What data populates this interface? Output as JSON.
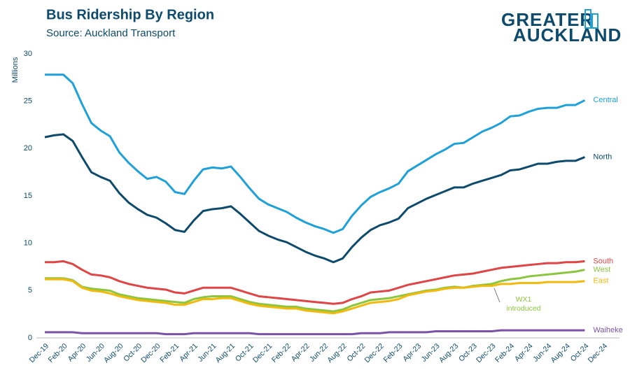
{
  "chart_data": {
    "type": "line",
    "title": "Bus Ridership By Region",
    "subtitle": "Source: Auckland Transport",
    "logo": [
      "GREATER",
      "AUCKLAND"
    ],
    "y_label": "Millions",
    "annotation": [
      "WX1",
      "introduced"
    ],
    "categories": [
      "Dec-19",
      null,
      "Feb-20",
      null,
      "Apr-20",
      null,
      "Jun-20",
      null,
      "Aug-20",
      null,
      "Oct-20",
      null,
      "Dec-20",
      null,
      "Feb-21",
      null,
      "Apr-21",
      null,
      "Jun-21",
      null,
      "Aug-21",
      null,
      "Oct-21",
      null,
      "Dec-21",
      null,
      "Feb-22",
      null,
      "Apr-22",
      null,
      "Jun-22",
      null,
      "Aug-22",
      null,
      "Oct-22",
      null,
      "Dec-22",
      null,
      "Feb-23",
      null,
      "Apr-23",
      null,
      "Jun-23",
      null,
      "Aug-23",
      null,
      "Oct-23",
      null,
      "Dec-23",
      null,
      "Feb-24",
      null,
      "Apr-24",
      null,
      "Jun-24",
      null,
      "Aug-24",
      null,
      "Oct-24",
      null,
      "Dec-24"
    ],
    "series": [
      {
        "name": "Central",
        "color": "#1ea0d8",
        "values": [
          27.8,
          27.8,
          27.8,
          26.9,
          24.7,
          22.7,
          21.9,
          21.3,
          19.6,
          18.5,
          17.6,
          16.8,
          17.0,
          16.5,
          15.4,
          15.2,
          16.6,
          17.8,
          18.0,
          17.9,
          18.1,
          17.0,
          15.8,
          14.7,
          14.1,
          13.7,
          13.3,
          12.7,
          12.2,
          11.8,
          11.5,
          11.1,
          11.5,
          12.9,
          14.0,
          14.9,
          15.4,
          15.8,
          16.3,
          17.6,
          18.2,
          18.8,
          19.4,
          19.9,
          20.5,
          20.6,
          21.2,
          21.8,
          22.2,
          22.7,
          23.4,
          23.5,
          23.9,
          24.2,
          24.3,
          24.3,
          24.6,
          24.6,
          25.1,
          null,
          null
        ]
      },
      {
        "name": "North",
        "color": "#0d4a6b",
        "values": [
          21.2,
          21.4,
          21.5,
          20.8,
          19.1,
          17.5,
          17.0,
          16.6,
          15.3,
          14.3,
          13.6,
          13.0,
          12.7,
          12.1,
          11.4,
          11.2,
          12.4,
          13.4,
          13.6,
          13.7,
          13.9,
          13.1,
          12.2,
          11.3,
          10.8,
          10.4,
          10.1,
          9.6,
          9.1,
          8.7,
          8.4,
          8.0,
          8.4,
          9.6,
          10.6,
          11.4,
          11.9,
          12.2,
          12.6,
          13.7,
          14.2,
          14.7,
          15.1,
          15.5,
          15.9,
          15.9,
          16.3,
          16.6,
          16.9,
          17.2,
          17.7,
          17.8,
          18.1,
          18.4,
          18.4,
          18.6,
          18.7,
          18.7,
          19.1,
          null,
          null
        ]
      },
      {
        "name": "South",
        "color": "#e04545",
        "values": [
          8.0,
          8.0,
          8.1,
          7.8,
          7.2,
          6.7,
          6.6,
          6.4,
          6.0,
          5.7,
          5.5,
          5.3,
          5.2,
          5.1,
          4.8,
          4.7,
          5.0,
          5.3,
          5.3,
          5.3,
          5.3,
          5.0,
          4.7,
          4.4,
          4.3,
          4.2,
          4.1,
          4.0,
          3.9,
          3.8,
          3.7,
          3.6,
          3.7,
          4.1,
          4.4,
          4.8,
          4.9,
          5.0,
          5.3,
          5.6,
          5.8,
          6.0,
          6.2,
          6.4,
          6.6,
          6.7,
          6.8,
          7.0,
          7.2,
          7.4,
          7.5,
          7.6,
          7.7,
          7.8,
          7.9,
          7.9,
          8.0,
          8.0,
          8.1,
          null,
          null
        ]
      },
      {
        "name": "West",
        "color": "#8cc63f",
        "values": [
          6.3,
          6.3,
          6.3,
          6.1,
          5.4,
          5.2,
          5.1,
          5.0,
          4.6,
          4.4,
          4.2,
          4.1,
          4.0,
          3.9,
          3.8,
          3.7,
          4.1,
          4.3,
          4.4,
          4.4,
          4.4,
          4.1,
          3.8,
          3.6,
          3.5,
          3.4,
          3.3,
          3.3,
          3.1,
          3.0,
          2.9,
          2.8,
          3.0,
          3.4,
          3.7,
          4.0,
          4.1,
          4.2,
          4.4,
          4.6,
          4.8,
          5.0,
          5.1,
          5.3,
          5.4,
          5.3,
          5.5,
          5.6,
          5.7,
          6.0,
          6.2,
          6.3,
          6.5,
          6.6,
          6.7,
          6.8,
          6.9,
          7.0,
          7.2,
          null,
          null
        ]
      },
      {
        "name": "East",
        "color": "#f2b90f",
        "values": [
          6.2,
          6.2,
          6.2,
          6.0,
          5.3,
          5.0,
          4.9,
          4.7,
          4.4,
          4.2,
          4.0,
          3.9,
          3.8,
          3.7,
          3.5,
          3.5,
          3.8,
          4.1,
          4.1,
          4.2,
          4.2,
          3.9,
          3.6,
          3.4,
          3.3,
          3.2,
          3.1,
          3.1,
          2.9,
          2.8,
          2.7,
          2.6,
          2.8,
          3.1,
          3.4,
          3.7,
          3.8,
          3.9,
          4.1,
          4.5,
          4.7,
          4.9,
          5.0,
          5.2,
          5.3,
          5.3,
          5.4,
          5.5,
          5.5,
          5.7,
          5.7,
          5.8,
          5.8,
          5.8,
          5.9,
          5.9,
          5.9,
          5.9,
          6.0,
          null,
          null
        ]
      },
      {
        "name": "Waiheke",
        "color": "#7b52a8",
        "values": [
          0.6,
          0.6,
          0.6,
          0.6,
          0.5,
          0.5,
          0.5,
          0.5,
          0.5,
          0.5,
          0.5,
          0.5,
          0.5,
          0.4,
          0.4,
          0.4,
          0.5,
          0.5,
          0.5,
          0.5,
          0.5,
          0.5,
          0.5,
          0.4,
          0.4,
          0.4,
          0.4,
          0.4,
          0.4,
          0.4,
          0.4,
          0.4,
          0.4,
          0.4,
          0.5,
          0.5,
          0.5,
          0.6,
          0.6,
          0.6,
          0.6,
          0.6,
          0.7,
          0.7,
          0.7,
          0.7,
          0.7,
          0.7,
          0.7,
          0.8,
          0.8,
          0.8,
          0.8,
          0.8,
          0.8,
          0.8,
          0.8,
          0.8,
          0.8,
          null,
          null
        ]
      }
    ],
    "ylim": [
      0,
      30
    ],
    "yticks": [
      0,
      5,
      10,
      15,
      20,
      25,
      30
    ]
  }
}
